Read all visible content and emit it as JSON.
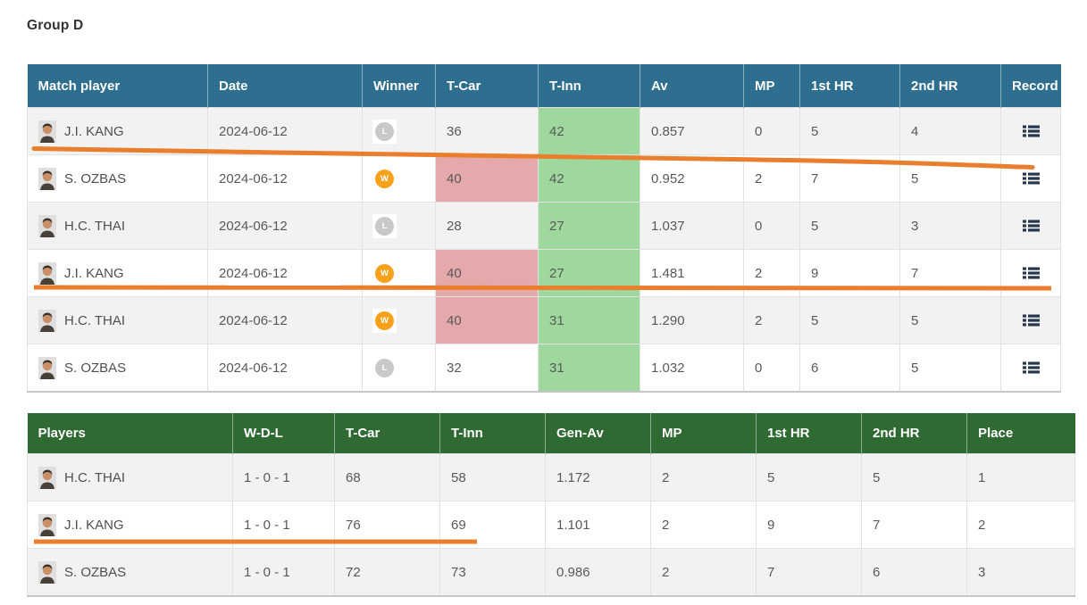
{
  "page": {
    "title": "Group D"
  },
  "colors": {
    "tealHeader": "#2e6e8e",
    "greenHeader": "#2f6a33",
    "winOrange": "#f9a11b",
    "loseGray": "#c9c9c9",
    "highlightGreen": "#9ed89d",
    "highlightPink": "#e6a9ab",
    "annotationOrange": "#e97e2d",
    "recordNavy": "#26374d"
  },
  "icons": {
    "record": "list-icon",
    "avatar": "player-avatar-icon"
  },
  "matches_table": {
    "headers": [
      "Match player",
      "Date",
      "Winner",
      "T-Car",
      "T-Inn",
      "Av",
      "MP",
      "1st HR",
      "2nd HR",
      "Record"
    ],
    "rows": [
      {
        "player": "J.I. KANG",
        "date": "2024-06-12",
        "winner": "L",
        "t_car": "36",
        "t_car_hl": false,
        "t_inn": "42",
        "av": "0.857",
        "mp": "0",
        "hr1": "5",
        "hr2": "4"
      },
      {
        "player": "S. OZBAS",
        "date": "2024-06-12",
        "winner": "W",
        "t_car": "40",
        "t_car_hl": true,
        "t_inn": "42",
        "av": "0.952",
        "mp": "2",
        "hr1": "7",
        "hr2": "5"
      },
      {
        "player": "H.C. THAI",
        "date": "2024-06-12",
        "winner": "L",
        "t_car": "28",
        "t_car_hl": false,
        "t_inn": "27",
        "av": "1.037",
        "mp": "0",
        "hr1": "5",
        "hr2": "3"
      },
      {
        "player": "J.I. KANG",
        "date": "2024-06-12",
        "winner": "W",
        "t_car": "40",
        "t_car_hl": true,
        "t_inn": "27",
        "av": "1.481",
        "mp": "2",
        "hr1": "9",
        "hr2": "7"
      },
      {
        "player": "H.C. THAI",
        "date": "2024-06-12",
        "winner": "W",
        "t_car": "40",
        "t_car_hl": true,
        "t_inn": "31",
        "av": "1.290",
        "mp": "2",
        "hr1": "5",
        "hr2": "5"
      },
      {
        "player": "S. OZBAS",
        "date": "2024-06-12",
        "winner": "L",
        "t_car": "32",
        "t_car_hl": false,
        "t_inn": "31",
        "av": "1.032",
        "mp": "0",
        "hr1": "6",
        "hr2": "5"
      }
    ]
  },
  "standings_table": {
    "headers": [
      "Players",
      "W-D-L",
      "T-Car",
      "T-Inn",
      "Gen-Av",
      "MP",
      "1st HR",
      "2nd HR",
      "Place"
    ],
    "rows": [
      {
        "player": "H.C. THAI",
        "wdl": "1 - 0 - 1",
        "t_car": "68",
        "t_inn": "58",
        "gen_av": "1.172",
        "mp": "2",
        "hr1": "5",
        "hr2": "5",
        "place": "1"
      },
      {
        "player": "J.I. KANG",
        "wdl": "1 - 0 - 1",
        "t_car": "76",
        "t_inn": "69",
        "gen_av": "1.101",
        "mp": "2",
        "hr1": "9",
        "hr2": "7",
        "place": "2"
      },
      {
        "player": "S. OZBAS",
        "wdl": "1 - 0 - 1",
        "t_car": "72",
        "t_inn": "73",
        "gen_av": "0.986",
        "mp": "2",
        "hr1": "7",
        "hr2": "6",
        "place": "3"
      }
    ]
  }
}
